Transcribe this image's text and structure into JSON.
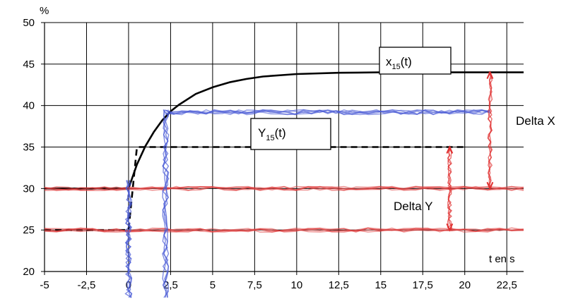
{
  "chart_data": {
    "type": "line",
    "title": "",
    "ylabel": "%",
    "xlabel": "t en s",
    "xlim": [
      -5,
      23.5
    ],
    "ylim": [
      20,
      50
    ],
    "x_ticks": [
      -5,
      -2.5,
      0,
      2.5,
      5,
      7.5,
      10,
      12.5,
      15,
      17.5,
      20,
      22.5
    ],
    "x_tick_labels": [
      "-5",
      "-2,5",
      "0",
      "2,5",
      "5",
      "7,5",
      "10",
      "12,5",
      "15",
      "17,5",
      "20",
      "22,5"
    ],
    "y_ticks": [
      20,
      25,
      30,
      35,
      40,
      45,
      50
    ],
    "y_tick_labels": [
      "20",
      "25",
      "30",
      "35",
      "40",
      "45",
      "50"
    ],
    "grid": true,
    "series": [
      {
        "name": "x15(t)",
        "color": "#000000",
        "style": "solid",
        "x": [
          -5,
          0,
          0.5,
          1,
          1.5,
          2,
          2.5,
          3,
          4,
          5,
          6,
          7,
          8,
          10,
          12.5,
          15,
          20,
          23.5
        ],
        "y": [
          30,
          30,
          32.9,
          35.1,
          36.8,
          38.2,
          39.3,
          40.1,
          41.4,
          42.2,
          42.8,
          43.2,
          43.5,
          43.8,
          43.95,
          44,
          44,
          44
        ]
      },
      {
        "name": "Y15(t)",
        "color": "#000000",
        "style": "dashed",
        "x": [
          -5,
          0,
          0.5,
          1,
          20
        ],
        "y": [
          25,
          25,
          35,
          35,
          35
        ]
      },
      {
        "name": "",
        "color": "#e04040",
        "style": "hand-drawn",
        "x": [
          -5,
          23.5
        ],
        "y": [
          30,
          30
        ]
      },
      {
        "name": "",
        "color": "#e04040",
        "style": "hand-drawn",
        "x": [
          -5,
          23.5
        ],
        "y": [
          25,
          25
        ]
      },
      {
        "name": "",
        "color": "#4a5bd6",
        "style": "hand-drawn",
        "x": [
          2.2,
          21.5
        ],
        "y": [
          39.2,
          39.2
        ]
      }
    ],
    "annotations": [
      {
        "text": "Delta X",
        "kind": "double-arrow",
        "x": 21.5,
        "y_from": 30,
        "y_to": 44
      },
      {
        "text": "Delta Y",
        "kind": "double-arrow",
        "x": 19.1,
        "y_from": 25,
        "y_to": 35
      },
      {
        "text": "x15(t)",
        "kind": "label-box",
        "x": 13.5,
        "y": 44
      },
      {
        "text": "Y15(t)",
        "kind": "label-box",
        "x": 8.5,
        "y": 35
      }
    ],
    "boxes": [
      {
        "main": "x",
        "sub": "15",
        "tail": "(t)"
      },
      {
        "main": "Y",
        "sub": "15",
        "tail": "(t)"
      }
    ],
    "delta_labels": [
      "Delta X",
      "Delta Y"
    ],
    "vertical_markers": [
      {
        "x": 0,
        "color": "#4a5bd6"
      },
      {
        "x": 2.2,
        "color": "#4a5bd6"
      }
    ]
  }
}
